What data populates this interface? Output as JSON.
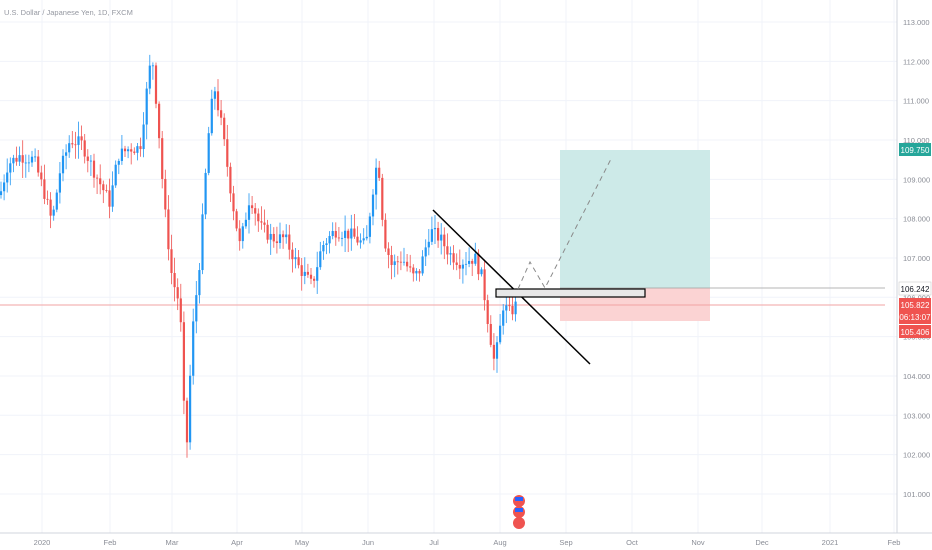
{
  "header": {
    "symbol_title": "U.S. Dollar / Japanese Yen, 1D, FXCM"
  },
  "price_axis": {
    "ticks": [
      "113.000",
      "112.000",
      "111.000",
      "110.000",
      "109.000",
      "108.000",
      "107.000",
      "106.000",
      "105.000",
      "104.000",
      "103.000",
      "102.000",
      "101.000"
    ],
    "tick_values": [
      113,
      112,
      111,
      110,
      109,
      108,
      107,
      106,
      105,
      104,
      103,
      102,
      101
    ],
    "target_label": "109.750",
    "entry_label": "106.242",
    "last_price_label": "105.822",
    "countdown_label": "06:13:07",
    "stop_label": "105.406"
  },
  "time_axis": {
    "ticks": [
      "2020",
      "Feb",
      "Mar",
      "Apr",
      "May",
      "Jun",
      "Jul",
      "Aug",
      "Sep",
      "Oct",
      "Nov",
      "Dec",
      "2021",
      "Feb"
    ]
  },
  "colors": {
    "up": "#2196f3",
    "down": "#ef5350",
    "target_zone": "#cdeae8",
    "stop_zone": "#fbd3d3",
    "target_badge": "#26a69a",
    "stop_badge": "#ef5350",
    "price_line": "#f2a3a3",
    "grid": "#f0f3fa"
  },
  "chart_data": {
    "type": "candlestick",
    "title": "U.S. Dollar / Japanese Yen, 1D, FXCM",
    "y_range": [
      100.5,
      113.5
    ],
    "annotations": {
      "long_position": {
        "entry": 106.242,
        "target": 109.75,
        "stop": 105.406
      },
      "last_price": 105.822
    },
    "series_anchor_points": [
      {
        "month": "2020-01",
        "price": 108.6
      },
      {
        "month": "2020-01-20",
        "price": 110.0
      },
      {
        "month": "2020-02-20",
        "price": 112.2
      },
      {
        "month": "2020-03-09",
        "price": 101.2
      },
      {
        "month": "2020-03-24",
        "price": 111.6
      },
      {
        "month": "2020-04-15",
        "price": 107.0
      },
      {
        "month": "2020-05-10",
        "price": 106.4
      },
      {
        "month": "2020-06-05",
        "price": 109.8
      },
      {
        "month": "2020-06-20",
        "price": 107.0
      },
      {
        "month": "2020-07-15",
        "price": 107.5
      },
      {
        "month": "2020-07-31",
        "price": 104.2
      },
      {
        "month": "2020-08-07",
        "price": 105.8
      }
    ]
  }
}
